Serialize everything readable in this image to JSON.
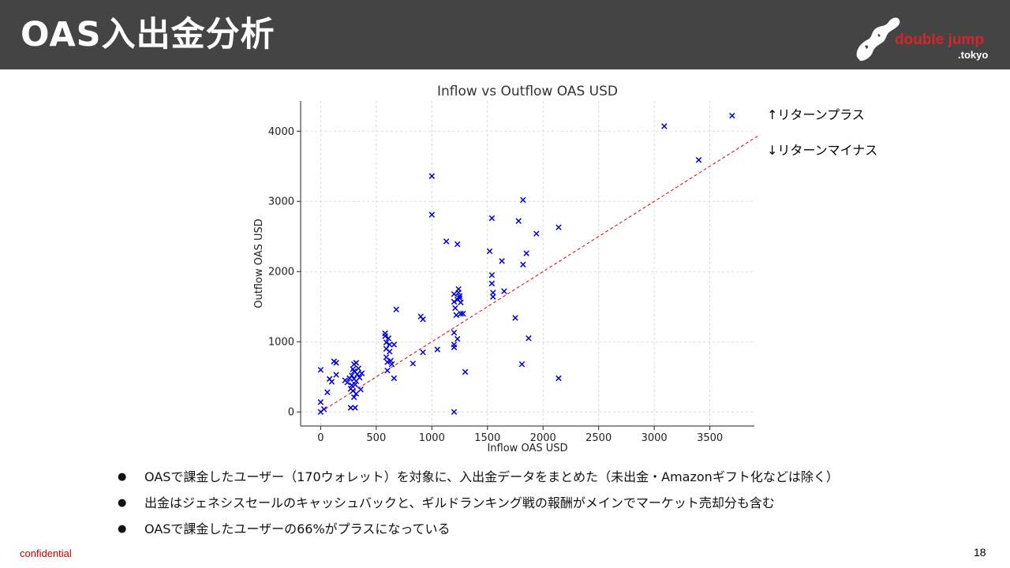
{
  "slide": {
    "title": "OAS入出金分析",
    "page_number": "18",
    "confidential": "confidential"
  },
  "logo": {
    "main": "double jump",
    "sub": ".tokyo"
  },
  "colors": {
    "header_bg": "#444444",
    "marker": "#0000dd",
    "reference_line": "#dd0000",
    "logo_red": "#d4262a"
  },
  "annotations": {
    "return_plus": "↑リターンプラス",
    "return_minus": "↓リターンマイナス"
  },
  "bullets": [
    "OASで課金したユーザー（170ウォレット）を対象に、入出金データをまとめた（未出金・Amazonギフト化などは除く）",
    "出金はジェネシスセールのキャッシュバックと、ギルドランキング戦の報酬がメインでマーケット売却分も含む",
    "OASで課金したユーザーの66%がプラスになっている"
  ],
  "chart_data": {
    "type": "scatter",
    "title": "Inflow vs Outflow OAS USD",
    "xlabel": "Inflow OAS USD",
    "ylabel": "Outflow OAS USD",
    "xlim": [
      -180,
      3900
    ],
    "ylim": [
      -200,
      4430
    ],
    "xticks": [
      0,
      500,
      1000,
      1500,
      2000,
      2500,
      3000,
      3500
    ],
    "yticks": [
      0,
      1000,
      2000,
      3000,
      4000
    ],
    "grid": true,
    "marker": "x",
    "reference_line": {
      "style": "dashed",
      "from": [
        0,
        0
      ],
      "to": [
        3950,
        3950
      ]
    },
    "points": [
      [
        0,
        600
      ],
      [
        0,
        140
      ],
      [
        0,
        0
      ],
      [
        30,
        40
      ],
      [
        60,
        280
      ],
      [
        80,
        470
      ],
      [
        100,
        430
      ],
      [
        120,
        720
      ],
      [
        140,
        700
      ],
      [
        140,
        530
      ],
      [
        220,
        450
      ],
      [
        240,
        420
      ],
      [
        260,
        480
      ],
      [
        270,
        330
      ],
      [
        270,
        60
      ],
      [
        280,
        380
      ],
      [
        280,
        520
      ],
      [
        290,
        610
      ],
      [
        290,
        300
      ],
      [
        300,
        680
      ],
      [
        300,
        580
      ],
      [
        300,
        470
      ],
      [
        300,
        210
      ],
      [
        310,
        390
      ],
      [
        310,
        60
      ],
      [
        320,
        700
      ],
      [
        320,
        440
      ],
      [
        320,
        260
      ],
      [
        330,
        540
      ],
      [
        340,
        620
      ],
      [
        350,
        490
      ],
      [
        360,
        320
      ],
      [
        370,
        550
      ],
      [
        580,
        1120
      ],
      [
        580,
        1080
      ],
      [
        590,
        990
      ],
      [
        590,
        900
      ],
      [
        590,
        780
      ],
      [
        600,
        710
      ],
      [
        600,
        590
      ],
      [
        610,
        1050
      ],
      [
        620,
        960
      ],
      [
        620,
        860
      ],
      [
        630,
        730
      ],
      [
        640,
        680
      ],
      [
        660,
        480
      ],
      [
        660,
        960
      ],
      [
        680,
        1460
      ],
      [
        830,
        690
      ],
      [
        900,
        1360
      ],
      [
        920,
        1320
      ],
      [
        920,
        850
      ],
      [
        1000,
        3360
      ],
      [
        1000,
        2810
      ],
      [
        1050,
        890
      ],
      [
        1130,
        2430
      ],
      [
        1200,
        1680
      ],
      [
        1200,
        1570
      ],
      [
        1200,
        1130
      ],
      [
        1200,
        960
      ],
      [
        1200,
        920
      ],
      [
        1200,
        0
      ],
      [
        1210,
        1480
      ],
      [
        1220,
        1380
      ],
      [
        1230,
        1600
      ],
      [
        1230,
        1040
      ],
      [
        1230,
        2390
      ],
      [
        1240,
        1750
      ],
      [
        1240,
        1700
      ],
      [
        1250,
        1650
      ],
      [
        1250,
        1620
      ],
      [
        1260,
        1400
      ],
      [
        1260,
        1560
      ],
      [
        1280,
        1400
      ],
      [
        1300,
        570
      ],
      [
        1520,
        2290
      ],
      [
        1540,
        2760
      ],
      [
        1540,
        1950
      ],
      [
        1540,
        1830
      ],
      [
        1550,
        1700
      ],
      [
        1550,
        1640
      ],
      [
        1630,
        2150
      ],
      [
        1650,
        1720
      ],
      [
        1750,
        1340
      ],
      [
        1780,
        2720
      ],
      [
        1810,
        680
      ],
      [
        1820,
        3020
      ],
      [
        1820,
        2100
      ],
      [
        1850,
        2260
      ],
      [
        1870,
        1050
      ],
      [
        1940,
        2540
      ],
      [
        2140,
        2630
      ],
      [
        2140,
        480
      ],
      [
        3090,
        4070
      ],
      [
        3400,
        3590
      ],
      [
        3700,
        4220
      ]
    ]
  }
}
